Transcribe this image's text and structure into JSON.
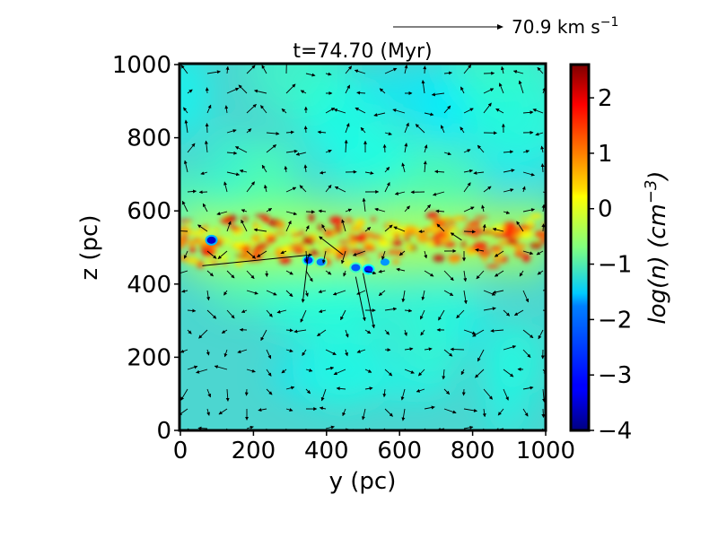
{
  "chart_data": {
    "type": "heatmap",
    "title": "t=74.70 (Myr)",
    "xlabel": "y (pc)",
    "ylabel": "z (pc)",
    "xlim": [
      0,
      1000
    ],
    "ylim": [
      0,
      1000
    ],
    "x_ticks": [
      "0",
      "200",
      "400",
      "600",
      "800",
      "1000"
    ],
    "y_ticks": [
      "0",
      "200",
      "400",
      "600",
      "800",
      "1000"
    ],
    "x_tick_values": [
      0,
      200,
      400,
      600,
      800,
      1000
    ],
    "y_tick_values": [
      0,
      200,
      400,
      600,
      800,
      1000
    ],
    "colorbar": {
      "label": "log(n) (cm^-3)",
      "label_parts": [
        "log(n) (cm",
        "−3",
        ")"
      ],
      "range": [
        -4,
        2.6
      ],
      "colormap": "jet",
      "tick_values": [
        -4,
        -3,
        -2,
        -1,
        0,
        1,
        2
      ],
      "tick_labels": [
        "−4",
        "−3",
        "−2",
        "−1",
        "0",
        "1",
        "2"
      ]
    },
    "quiver_key": {
      "value": 70.9,
      "label": "70.9 km s^-1",
      "label_parts": [
        "70.9 km s",
        "−1"
      ]
    },
    "midplane_z": 520,
    "background_log_n": -1.4,
    "dense_clumps": [
      {
        "y": 85,
        "z": 520,
        "log_n": -3.5
      },
      {
        "y": 350,
        "z": 465,
        "log_n": -2.8
      },
      {
        "y": 385,
        "z": 460,
        "log_n": -2.4
      },
      {
        "y": 480,
        "z": 445,
        "log_n": -2.6
      },
      {
        "y": 515,
        "z": 440,
        "log_n": -3.0
      },
      {
        "y": 560,
        "z": 460,
        "log_n": -2.2
      }
    ]
  }
}
